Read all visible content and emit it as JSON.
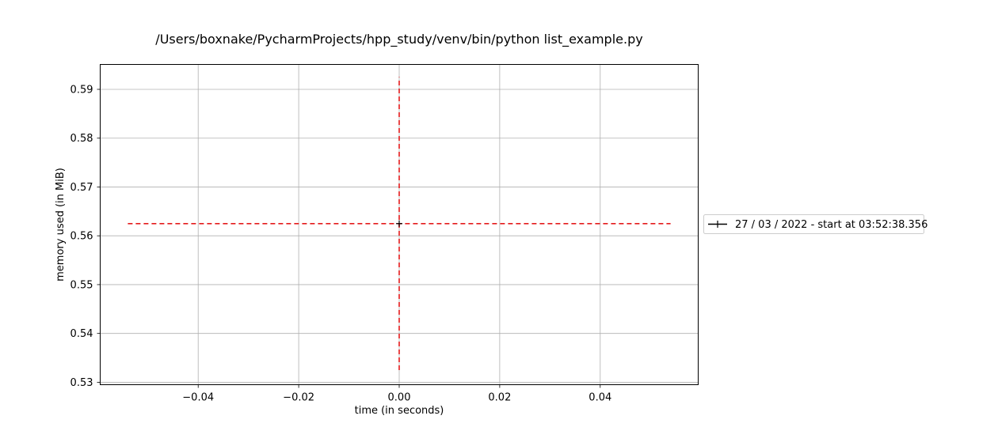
{
  "chart_data": {
    "type": "line",
    "title": "/Users/boxnake/PycharmProjects/hpp_study/venv/bin/python list_example.py",
    "xlabel": "time (in seconds)",
    "ylabel": "memory used (in MiB)",
    "xlim": [
      -0.0595,
      0.0595
    ],
    "ylim": [
      0.5295,
      0.5951
    ],
    "grid": true,
    "legend_position": "right",
    "x_ticks": [
      -0.04,
      -0.02,
      0.0,
      0.02,
      0.04
    ],
    "x_tick_labels": [
      "−0.04",
      "−0.02",
      "0.00",
      "0.02",
      "0.04"
    ],
    "y_ticks": [
      0.53,
      0.54,
      0.55,
      0.56,
      0.57,
      0.58,
      0.59
    ],
    "y_tick_labels": [
      "0.53",
      "0.54",
      "0.55",
      "0.56",
      "0.57",
      "0.58",
      "0.59"
    ],
    "series": [
      {
        "name": "27 / 03 / 2022 - start at 03:52:38.356",
        "color": "#000000",
        "marker": "+",
        "x": [
          0.0
        ],
        "y": [
          0.5625
        ]
      }
    ],
    "reference_lines": [
      {
        "orientation": "horizontal",
        "value": 0.5625,
        "from": -0.054,
        "to": 0.054,
        "color": "#e41a1c",
        "style": "dashed"
      },
      {
        "orientation": "vertical",
        "value": 0.0,
        "from": 0.5325,
        "to": 0.5925,
        "color": "#e41a1c",
        "style": "dashed"
      }
    ]
  }
}
